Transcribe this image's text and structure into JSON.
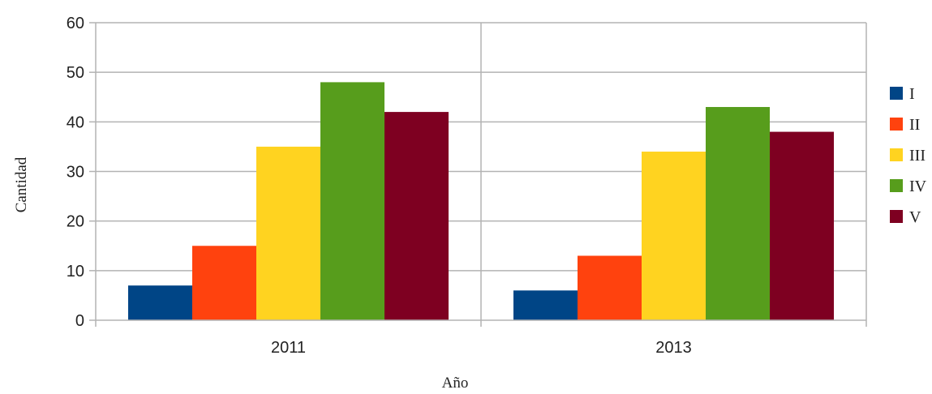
{
  "chart_data": {
    "type": "bar",
    "categories": [
      "2011",
      "2013"
    ],
    "series": [
      {
        "name": "I",
        "values": [
          7,
          6
        ],
        "color": "#004586"
      },
      {
        "name": "II",
        "values": [
          15,
          13
        ],
        "color": "#ff420e"
      },
      {
        "name": "III",
        "values": [
          35,
          34
        ],
        "color": "#ffd320"
      },
      {
        "name": "IV",
        "values": [
          48,
          43
        ],
        "color": "#579d1c"
      },
      {
        "name": "V",
        "values": [
          42,
          38
        ],
        "color": "#7e0021"
      }
    ],
    "xlabel": "Año",
    "ylabel": "Cantidad",
    "ylim": [
      0,
      60
    ],
    "yticks": [
      0,
      10,
      20,
      30,
      40,
      50,
      60
    ],
    "grid": true,
    "legend_position": "right"
  }
}
